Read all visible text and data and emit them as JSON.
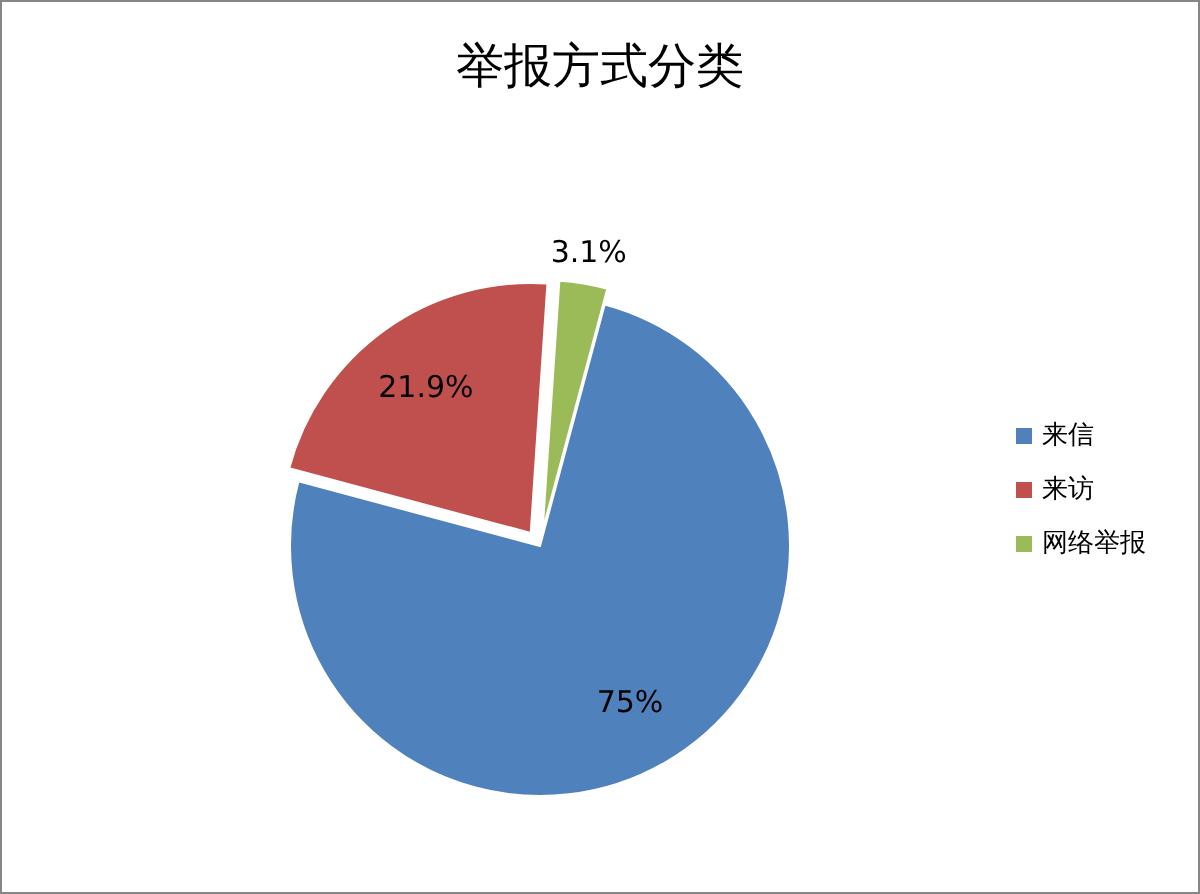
{
  "chart_data": {
    "type": "pie",
    "title": "举报方式分类",
    "categories": [
      "来信",
      "来访",
      "网络举报"
    ],
    "values": [
      75,
      21.9,
      3.1
    ],
    "colors": [
      "#4f81bd",
      "#c0504d",
      "#9bbb59"
    ],
    "value_labels": [
      "75%",
      "21.9%",
      "3.1%"
    ],
    "legend": "right"
  }
}
